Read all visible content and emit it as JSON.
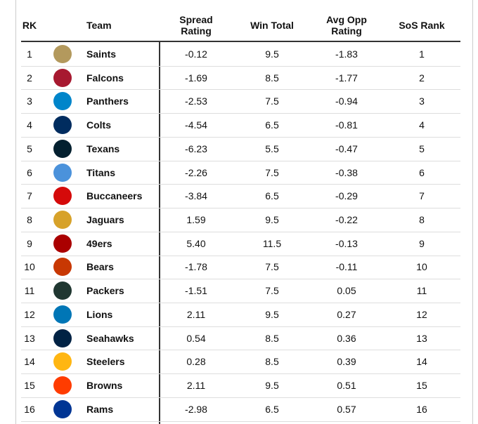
{
  "table": {
    "headers": [
      "RK",
      "Team",
      "Spread Rating",
      "Win Total",
      "Avg Opp Rating",
      "SoS Rank"
    ],
    "rows": [
      [
        "1",
        "Saints",
        "-0.12",
        "9.5",
        "-1.83",
        "1"
      ],
      [
        "2",
        "Falcons",
        "-1.69",
        "8.5",
        "-1.77",
        "2"
      ],
      [
        "3",
        "Panthers",
        "-2.53",
        "7.5",
        "-0.94",
        "3"
      ],
      [
        "4",
        "Colts",
        "-4.54",
        "6.5",
        "-0.81",
        "4"
      ],
      [
        "5",
        "Texans",
        "-6.23",
        "5.5",
        "-0.47",
        "5"
      ],
      [
        "6",
        "Titans",
        "-2.26",
        "7.5",
        "-0.38",
        "6"
      ],
      [
        "7",
        "Buccaneers",
        "-3.84",
        "6.5",
        "-0.29",
        "7"
      ],
      [
        "8",
        "Jaguars",
        "1.59",
        "9.5",
        "-0.22",
        "8"
      ],
      [
        "9",
        "49ers",
        "5.40",
        "11.5",
        "-0.13",
        "9"
      ],
      [
        "10",
        "Bears",
        "-1.78",
        "7.5",
        "-0.11",
        "10"
      ],
      [
        "11",
        "Packers",
        "-1.51",
        "7.5",
        "0.05",
        "11"
      ],
      [
        "12",
        "Lions",
        "2.11",
        "9.5",
        "0.27",
        "12"
      ],
      [
        "13",
        "Seahawks",
        "0.54",
        "8.5",
        "0.36",
        "13"
      ],
      [
        "14",
        "Steelers",
        "0.28",
        "8.5",
        "0.39",
        "14"
      ],
      [
        "15",
        "Browns",
        "2.11",
        "9.5",
        "0.51",
        "15"
      ],
      [
        "16",
        "Rams",
        "-2.98",
        "6.5",
        "0.57",
        "16"
      ]
    ]
  }
}
